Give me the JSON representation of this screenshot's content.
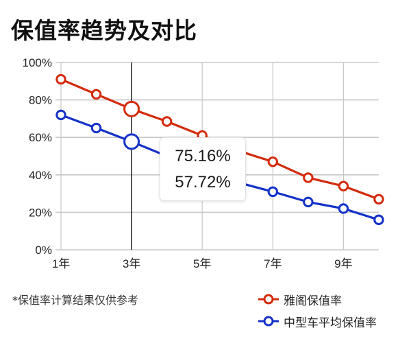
{
  "header": {
    "title": "保值率趋势及对比"
  },
  "tooltip": {
    "line1": "75.16%",
    "line2": "57.72%",
    "year_index": 3
  },
  "footnote": "*保值率计算结果仅供参考",
  "legend": [
    {
      "label": "雅阁保值率",
      "color": "#d42a0c"
    },
    {
      "label": "中型车平均保值率",
      "color": "#1432c8"
    }
  ],
  "colors": {
    "red": "#d42a0c",
    "blue": "#1432c8",
    "grid": "#c8c8c8",
    "crosshair": "#111111"
  },
  "chart_data": {
    "type": "line",
    "title": "保值率趋势及对比",
    "xlabel": "",
    "ylabel": "",
    "x": [
      1,
      2,
      3,
      4,
      5,
      6,
      7,
      8,
      9,
      10
    ],
    "x_tick_labels": [
      "1年",
      "3年",
      "5年",
      "7年",
      "9年"
    ],
    "x_tick_positions": [
      1,
      3,
      5,
      7,
      9
    ],
    "y_tick_labels": [
      "0%",
      "20%",
      "40%",
      "60%",
      "80%",
      "100%"
    ],
    "ylim": [
      0,
      100
    ],
    "grid": true,
    "legend_position": "bottom-right",
    "series": [
      {
        "name": "雅阁保值率",
        "color": "#d42a0c",
        "values": [
          91,
          83,
          75.16,
          68.5,
          61,
          53,
          47,
          38.5,
          34,
          27
        ]
      },
      {
        "name": "中型车平均保值率",
        "color": "#1432c8",
        "values": [
          72,
          65,
          57.72,
          50,
          42.5,
          36,
          31,
          25.5,
          22,
          16
        ]
      }
    ],
    "annotations": [
      {
        "type": "crosshair",
        "x": 3,
        "labels": [
          "75.16%",
          "57.72%"
        ]
      }
    ]
  }
}
